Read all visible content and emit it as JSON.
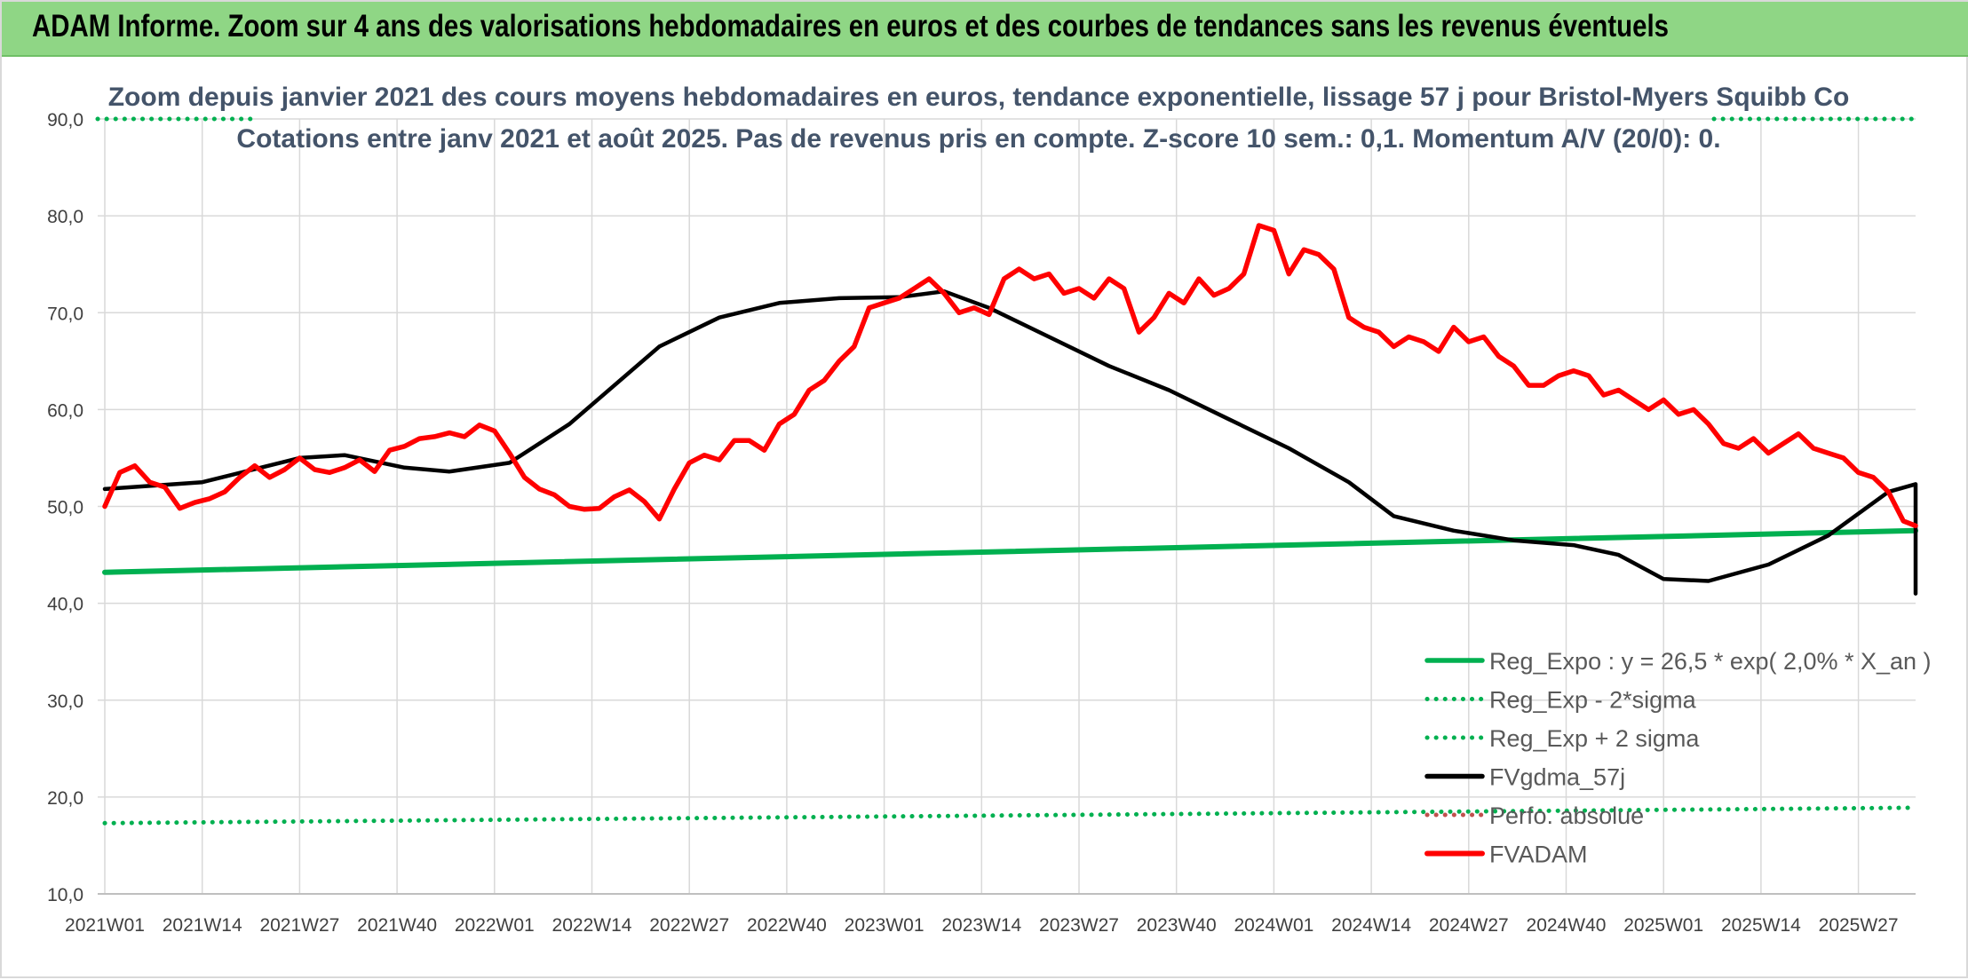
{
  "header": {
    "title": "ADAM Informe. Zoom sur 4 ans des valorisations hebdomadaires en euros et des courbes de tendances sans les revenus éventuels"
  },
  "chart_data": {
    "type": "line",
    "title": "Zoom depuis janvier 2021 des cours moyens hebdomadaires en euros, tendance exponentielle, lissage 57 j pour Bristol-Myers Squibb Co",
    "subtitle": "Cotations entre janv 2021 et août 2025. Pas de revenus pris en compte. Z-score 10 sem.: 0,1. Momentum A/V (20/0): 0.",
    "xlabel": "",
    "ylabel": "",
    "ylim": [
      10,
      90
    ],
    "yticks": [
      "10,0",
      "20,0",
      "30,0",
      "40,0",
      "50,0",
      "60,0",
      "70,0",
      "80,0",
      "90,0"
    ],
    "xticks": [
      "2021W01",
      "2021W14",
      "2021W27",
      "2021W40",
      "2022W01",
      "2022W14",
      "2022W27",
      "2022W40",
      "2023W01",
      "2023W14",
      "2023W27",
      "2023W40",
      "2024W01",
      "2024W14",
      "2024W27",
      "2024W40",
      "2025W01",
      "2025W14",
      "2025W27"
    ],
    "grid": true,
    "legend_position": "bottom-right",
    "n_weeks": 244,
    "series": [
      {
        "name": "Reg_Expo : y = 26,5 * exp( 2,0% *  X_an )",
        "color": "#00b050",
        "style": "solid",
        "points": [
          [
            0,
            43.2
          ],
          [
            243,
            47.5
          ]
        ]
      },
      {
        "name": "Reg_Exp - 2*sigma",
        "color": "#00b050",
        "style": "dotted",
        "points": [
          [
            0,
            17.3
          ],
          [
            243,
            18.9
          ]
        ]
      },
      {
        "name": "Reg_Exp + 2 sigma",
        "color": "#00b050",
        "style": "dotted",
        "points": [
          [
            0,
            90.0
          ],
          [
            243,
            90.0
          ]
        ]
      },
      {
        "name": "FVgdma_57j",
        "color": "#000000",
        "style": "solid",
        "points": [
          [
            0,
            51.8
          ],
          [
            13,
            52.5
          ],
          [
            26,
            55.0
          ],
          [
            32,
            55.3
          ],
          [
            40,
            54.0
          ],
          [
            46,
            53.6
          ],
          [
            54,
            54.5
          ],
          [
            62,
            58.5
          ],
          [
            74,
            66.5
          ],
          [
            82,
            69.5
          ],
          [
            90,
            71.0
          ],
          [
            98,
            71.5
          ],
          [
            106,
            71.6
          ],
          [
            112,
            72.2
          ],
          [
            118,
            70.5
          ],
          [
            126,
            67.5
          ],
          [
            134,
            64.5
          ],
          [
            142,
            62.0
          ],
          [
            150,
            59.0
          ],
          [
            158,
            56.0
          ],
          [
            166,
            52.5
          ],
          [
            172,
            49.0
          ],
          [
            180,
            47.5
          ],
          [
            188,
            46.5
          ],
          [
            196,
            46.0
          ],
          [
            202,
            45.0
          ],
          [
            208,
            42.5
          ],
          [
            214,
            42.3
          ],
          [
            222,
            44.0
          ],
          [
            230,
            47.0
          ],
          [
            238,
            51.5
          ],
          [
            246,
            52.3
          ],
          [
            250,
            52.3
          ],
          [
            256,
            51.5
          ],
          [
            262,
            48.5
          ],
          [
            268,
            45.5
          ],
          [
            276,
            43.0
          ],
          [
            284,
            41.8
          ],
          [
            292,
            41.2
          ],
          [
            296,
            41.0
          ]
        ]
      },
      {
        "name": "Perfo. absolue",
        "color": "#c0504d",
        "style": "dotted",
        "points": []
      },
      {
        "name": "FVADAM",
        "color": "#ff0000",
        "style": "solid",
        "points": [
          [
            0,
            50.0
          ],
          [
            2,
            53.5
          ],
          [
            4,
            54.2
          ],
          [
            6,
            52.5
          ],
          [
            8,
            52.0
          ],
          [
            10,
            49.8
          ],
          [
            12,
            50.4
          ],
          [
            14,
            50.8
          ],
          [
            16,
            51.5
          ],
          [
            18,
            53.0
          ],
          [
            20,
            54.2
          ],
          [
            22,
            53.0
          ],
          [
            24,
            53.8
          ],
          [
            26,
            55.0
          ],
          [
            28,
            53.8
          ],
          [
            30,
            53.5
          ],
          [
            32,
            54.0
          ],
          [
            34,
            54.8
          ],
          [
            36,
            53.6
          ],
          [
            38,
            55.8
          ],
          [
            40,
            56.2
          ],
          [
            42,
            57.0
          ],
          [
            44,
            57.2
          ],
          [
            46,
            57.6
          ],
          [
            48,
            57.2
          ],
          [
            50,
            58.4
          ],
          [
            52,
            57.8
          ],
          [
            54,
            55.5
          ],
          [
            56,
            53.0
          ],
          [
            58,
            51.8
          ],
          [
            60,
            51.2
          ],
          [
            62,
            50.0
          ],
          [
            64,
            49.7
          ],
          [
            66,
            49.8
          ],
          [
            68,
            51.0
          ],
          [
            70,
            51.7
          ],
          [
            72,
            50.5
          ],
          [
            74,
            48.7
          ],
          [
            76,
            51.8
          ],
          [
            78,
            54.5
          ],
          [
            80,
            55.3
          ],
          [
            82,
            54.8
          ],
          [
            84,
            56.8
          ],
          [
            86,
            56.8
          ],
          [
            88,
            55.8
          ],
          [
            90,
            58.5
          ],
          [
            92,
            59.5
          ],
          [
            94,
            62.0
          ],
          [
            96,
            63.0
          ],
          [
            98,
            65.0
          ],
          [
            100,
            66.5
          ],
          [
            102,
            70.5
          ],
          [
            104,
            71.0
          ],
          [
            106,
            71.5
          ],
          [
            108,
            72.5
          ],
          [
            110,
            73.5
          ],
          [
            112,
            72.0
          ],
          [
            114,
            70.0
          ],
          [
            116,
            70.5
          ],
          [
            118,
            69.8
          ],
          [
            120,
            73.5
          ],
          [
            122,
            74.5
          ],
          [
            124,
            73.5
          ],
          [
            126,
            74.0
          ],
          [
            128,
            72.0
          ],
          [
            130,
            72.5
          ],
          [
            132,
            71.5
          ],
          [
            134,
            73.5
          ],
          [
            136,
            72.5
          ],
          [
            138,
            68.0
          ],
          [
            140,
            69.5
          ],
          [
            142,
            72.0
          ],
          [
            144,
            71.0
          ],
          [
            146,
            73.5
          ],
          [
            148,
            71.8
          ],
          [
            150,
            72.5
          ],
          [
            152,
            74.0
          ],
          [
            154,
            79.0
          ],
          [
            156,
            78.5
          ],
          [
            158,
            74.0
          ],
          [
            160,
            76.5
          ],
          [
            162,
            76.0
          ],
          [
            164,
            74.5
          ],
          [
            166,
            69.5
          ],
          [
            168,
            68.5
          ],
          [
            170,
            68.0
          ],
          [
            172,
            66.5
          ],
          [
            174,
            67.5
          ],
          [
            176,
            67.0
          ],
          [
            178,
            66.0
          ],
          [
            180,
            68.5
          ],
          [
            182,
            67.0
          ],
          [
            184,
            67.5
          ],
          [
            186,
            65.5
          ],
          [
            188,
            64.5
          ],
          [
            190,
            62.5
          ],
          [
            192,
            62.5
          ],
          [
            194,
            63.5
          ],
          [
            196,
            64.0
          ],
          [
            198,
            63.5
          ],
          [
            200,
            61.5
          ],
          [
            202,
            62.0
          ],
          [
            204,
            61.0
          ],
          [
            206,
            60.0
          ],
          [
            208,
            61.0
          ],
          [
            210,
            59.5
          ],
          [
            212,
            60.0
          ],
          [
            214,
            58.5
          ],
          [
            216,
            56.5
          ],
          [
            218,
            56.0
          ],
          [
            220,
            57.0
          ],
          [
            222,
            55.5
          ],
          [
            224,
            56.5
          ],
          [
            226,
            57.5
          ],
          [
            228,
            56.0
          ],
          [
            230,
            55.5
          ],
          [
            232,
            55.0
          ],
          [
            234,
            53.5
          ],
          [
            236,
            53.0
          ],
          [
            238,
            51.5
          ],
          [
            240,
            48.5
          ],
          [
            243,
            48.0
          ]
        ]
      }
    ]
  },
  "legend": [
    {
      "label": "Reg_Expo : y = 26,5 * exp( 2,0% *  X_an )",
      "color": "#00b050",
      "style": "solid"
    },
    {
      "label": "Reg_Exp - 2*sigma",
      "color": "#00b050",
      "style": "dotted"
    },
    {
      "label": "Reg_Exp + 2 sigma",
      "color": "#00b050",
      "style": "dotted"
    },
    {
      "label": "FVgdma_57j",
      "color": "#000000",
      "style": "solid"
    },
    {
      "label": "Perfo. absolue",
      "color": "#c0504d",
      "style": "dotted"
    },
    {
      "label": "FVADAM",
      "color": "#ff0000",
      "style": "solid"
    }
  ]
}
